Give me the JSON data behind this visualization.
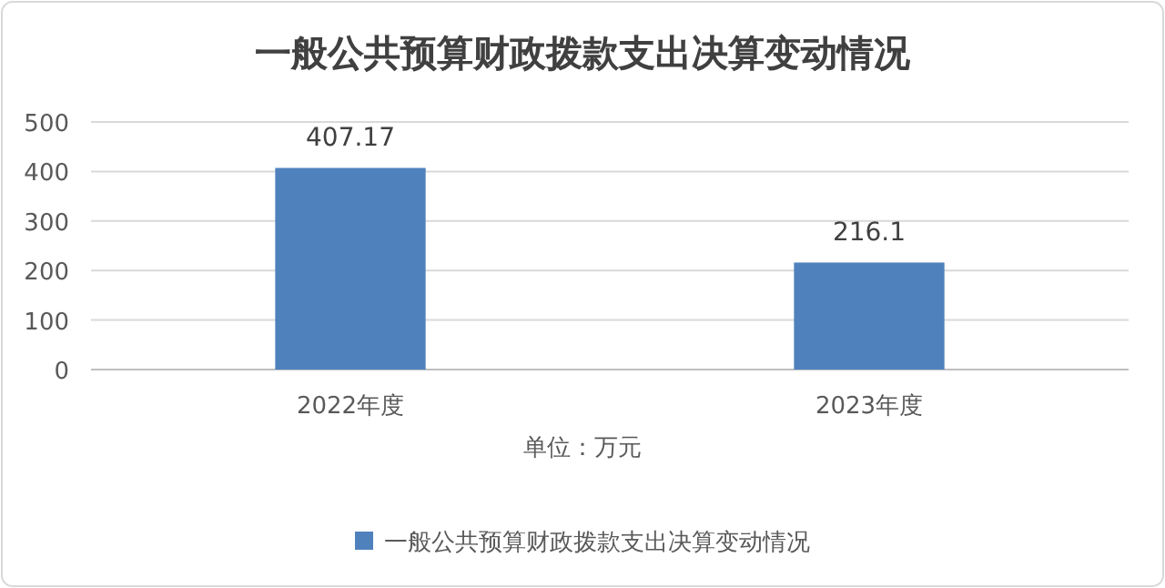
{
  "chart_data": {
    "type": "bar",
    "title": "一般公共预算财政拨款支出决算变动情况",
    "xlabel": "单位：万元",
    "categories": [
      "2022年度",
      "2023年度"
    ],
    "series": [
      {
        "name": "一般公共预算财政拨款支出决算变动情况",
        "color": "#4f81bd",
        "values": [
          407.17,
          216.1
        ]
      }
    ],
    "ylim": [
      0,
      500
    ],
    "yticks": [
      0,
      100,
      200,
      300,
      400,
      500
    ],
    "grid": "y",
    "legend": "bottom",
    "data_labels": true
  }
}
